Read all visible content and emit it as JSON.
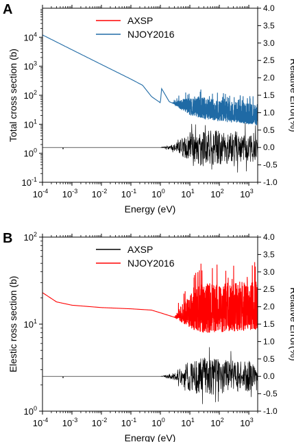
{
  "chart_data": [
    {
      "type": "line",
      "panel_label": "A",
      "xlabel": "Energy (eV)",
      "ylabel": "Total cross section (b)",
      "ylabel_right": "Relative Error(%)",
      "x_scale": "log",
      "y_scale": "log",
      "xlim": [
        0.0001,
        2000
      ],
      "ylim": [
        0.1,
        100000
      ],
      "ylim_right": [
        -1.0,
        4.0
      ],
      "x_ticks": [
        0.0001,
        0.001,
        0.01,
        0.1,
        1,
        10,
        100,
        1000
      ],
      "x_tick_labels": [
        "10",
        "10",
        "10",
        "10",
        "10",
        "10",
        "10",
        "10"
      ],
      "x_tick_exps": [
        "-4",
        "-3",
        "-2",
        "-1",
        "0",
        "1",
        "2",
        "3"
      ],
      "y_ticks": [
        0.1,
        1,
        10,
        100,
        1000,
        10000
      ],
      "y_tick_labels": [
        "10",
        "10",
        "10",
        "10",
        "10",
        "10"
      ],
      "y_tick_exps": [
        "-1",
        "0",
        "1",
        "2",
        "3",
        "4"
      ],
      "y_right_ticks": [
        -1.0,
        -0.5,
        0.0,
        0.5,
        1.0,
        1.5,
        2.0,
        2.5,
        3.0,
        3.5,
        4.0
      ],
      "y_right_tick_labels": [
        "-1.0",
        "-0.5",
        "0.0",
        "0.5",
        "1.0",
        "1.5",
        "2.0",
        "2.5",
        "3.0",
        "3.5",
        "4.0"
      ],
      "legend": "top-center",
      "series": [
        {
          "name": "AXSP",
          "color": "#ff0000",
          "x": [
            0.0001,
            0.001,
            0.01,
            0.1,
            0.25,
            0.5,
            1.0,
            1.1,
            2,
            5,
            10,
            30,
            100,
            1000,
            2000
          ],
          "y": [
            12000,
            3700,
            1150,
            360,
            220,
            90,
            55,
            170,
            60,
            40,
            30,
            25,
            20,
            16,
            15
          ]
        },
        {
          "name": "NJOY2016",
          "color": "#1f6aa5",
          "x": [
            0.0001,
            0.001,
            0.01,
            0.1,
            0.25,
            0.5,
            1.0,
            1.1,
            2,
            5,
            10,
            30,
            100,
            1000,
            2000
          ],
          "y": [
            12000,
            3700,
            1150,
            360,
            220,
            90,
            55,
            170,
            60,
            40,
            30,
            25,
            20,
            16,
            15
          ]
        },
        {
          "name": "Relative Error",
          "axis": "right",
          "color": "#000000",
          "x": [
            0.0001,
            0.0005,
            0.001,
            0.1,
            1,
            3,
            10,
            30,
            100,
            1000,
            2000
          ],
          "y": [
            0.0,
            0.0,
            0.0,
            0.0,
            0.0,
            0.1,
            0.45,
            0.55,
            0.5,
            0.45,
            0.4
          ]
        }
      ]
    },
    {
      "type": "line",
      "panel_label": "B",
      "xlabel": "Energy (eV)",
      "ylabel": "Elestic ross section (b)",
      "ylabel_right": "Relative Error(%)",
      "x_scale": "log",
      "y_scale": "log",
      "xlim": [
        0.0001,
        2000
      ],
      "ylim": [
        1,
        100
      ],
      "ylim_right": [
        -1.0,
        4.0
      ],
      "x_ticks": [
        0.0001,
        0.001,
        0.01,
        0.1,
        1,
        10,
        100,
        1000
      ],
      "x_tick_labels": [
        "10",
        "10",
        "10",
        "10",
        "10",
        "10",
        "10",
        "10"
      ],
      "x_tick_exps": [
        "-4",
        "-3",
        "-2",
        "-1",
        "0",
        "1",
        "2",
        "3"
      ],
      "y_ticks": [
        1,
        10,
        100
      ],
      "y_tick_labels": [
        "10",
        "10",
        "10"
      ],
      "y_tick_exps": [
        "0",
        "1",
        "2"
      ],
      "y_right_ticks": [
        -1.0,
        -0.5,
        0.0,
        0.5,
        1.0,
        1.5,
        2.0,
        2.5,
        3.0,
        3.5,
        4.0
      ],
      "y_right_tick_labels": [
        "-1.0",
        "-0.5",
        "0.0",
        "0.5",
        "1.0",
        "1.5",
        "2.0",
        "2.5",
        "3.0",
        "3.5",
        "4.0"
      ],
      "legend": "top-center",
      "series": [
        {
          "name": "AXSP",
          "color": "#000000",
          "x": [
            0.0001,
            0.0003,
            0.001,
            0.01,
            0.1,
            0.5,
            1,
            3,
            10,
            100,
            1000,
            2000
          ],
          "y": [
            23,
            18,
            16.5,
            15.5,
            15,
            14.5,
            13.5,
            12,
            12,
            12.5,
            13,
            13
          ]
        },
        {
          "name": "NJOY2016",
          "color": "#ff0000",
          "x": [
            0.0001,
            0.0003,
            0.001,
            0.01,
            0.1,
            0.5,
            1,
            3,
            10,
            100,
            1000,
            2000
          ],
          "y": [
            23,
            18,
            16.5,
            15.5,
            15,
            14.5,
            13.5,
            12,
            12,
            12.5,
            13,
            13
          ]
        },
        {
          "name": "Relative Error",
          "axis": "right",
          "color": "#000000",
          "x": [
            0.0001,
            0.0005,
            0.001,
            0.1,
            1,
            3,
            10,
            30,
            100,
            1000,
            2000
          ],
          "y": [
            0.0,
            0.0,
            0.0,
            0.0,
            0.0,
            0.1,
            0.45,
            0.55,
            0.5,
            0.45,
            0.4
          ]
        }
      ]
    }
  ]
}
